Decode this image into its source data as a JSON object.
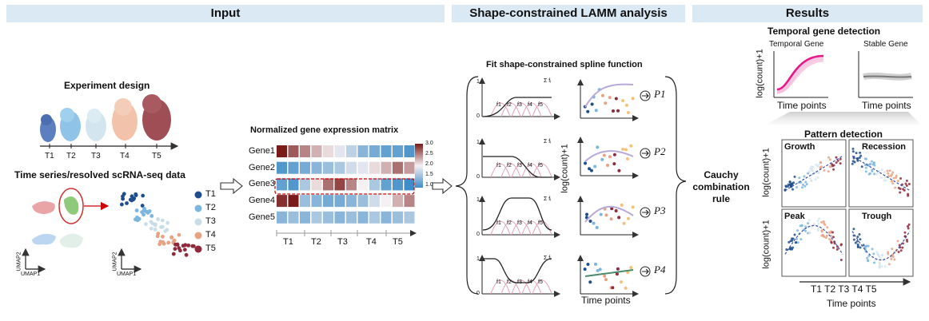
{
  "headers": {
    "input": "Input",
    "analysis": "Shape-constrained LAMM analysis",
    "results": "Results"
  },
  "input": {
    "experiment_title": "Experiment design",
    "timepoints": [
      "T1",
      "T2",
      "T3",
      "T4",
      "T5"
    ],
    "scrna_title": "Time series/resolved scRNA-seq data",
    "umap_x": "UMAP1",
    "umap_y": "UMAP2",
    "legend": [
      "T1",
      "T2",
      "T3",
      "T4",
      "T5"
    ],
    "legend_colors": [
      "#1f4e8c",
      "#7bb6dd",
      "#c9dde9",
      "#e8a283",
      "#8e2a3c"
    ]
  },
  "matrix": {
    "title": "Normalized gene expression matrix",
    "genes": [
      "Gene1",
      "Gene2",
      "Gene3",
      "Gene4",
      "Gene5"
    ],
    "columns": [
      "T1",
      "T2",
      "T3",
      "T4",
      "T5"
    ],
    "scale_ticks": [
      "3.0",
      "2.5",
      "2.0",
      "1.5",
      "1.0"
    ],
    "values": [
      [
        3.0,
        2.7,
        2.5,
        2.3,
        2.1,
        1.9,
        1.7,
        1.4,
        1.3,
        1.2,
        1.2,
        1.1
      ],
      [
        1.1,
        1.2,
        1.3,
        1.4,
        1.5,
        1.6,
        1.8,
        1.9,
        2.1,
        2.3,
        2.6,
        2.4
      ],
      [
        1.2,
        1.1,
        1.6,
        2.1,
        2.6,
        2.8,
        2.5,
        2.0,
        1.6,
        1.2,
        1.1,
        1.0
      ],
      [
        2.9,
        3.0,
        1.5,
        1.4,
        1.3,
        1.3,
        1.4,
        1.5,
        1.8,
        2.0,
        2.3,
        2.5
      ],
      [
        1.4,
        1.5,
        1.4,
        1.6,
        1.5,
        1.4,
        1.5,
        1.4,
        1.6,
        1.4,
        1.5,
        1.6
      ]
    ]
  },
  "analysis": {
    "fit_title": "Fit shape-constrained spline function",
    "sum_label": "Σ fᵢ",
    "basis": [
      "f1",
      "f2",
      "f3",
      "f4",
      "f5"
    ],
    "y_ticks": [
      "1",
      "0"
    ],
    "ylabel": "log(count)+1",
    "xlabel": "Time points",
    "pvalues": [
      "P1",
      "P2",
      "P3",
      "P4"
    ],
    "cauchy": "Cauchy combination rule"
  },
  "results": {
    "temporal_title": "Temporal gene detection",
    "temporal_gene": "Temporal Gene",
    "stable_gene": "Stable Gene",
    "ylabel": "log(count)+1",
    "xlabel": "Time points",
    "pattern_title": "Pattern detection",
    "patterns": [
      "Growth",
      "Recession",
      "Peak",
      "Trough"
    ],
    "pattern_x": "T1 T2 T3 T4 T5",
    "pattern_xlabel": "Time points",
    "accent": "#e6198a"
  }
}
